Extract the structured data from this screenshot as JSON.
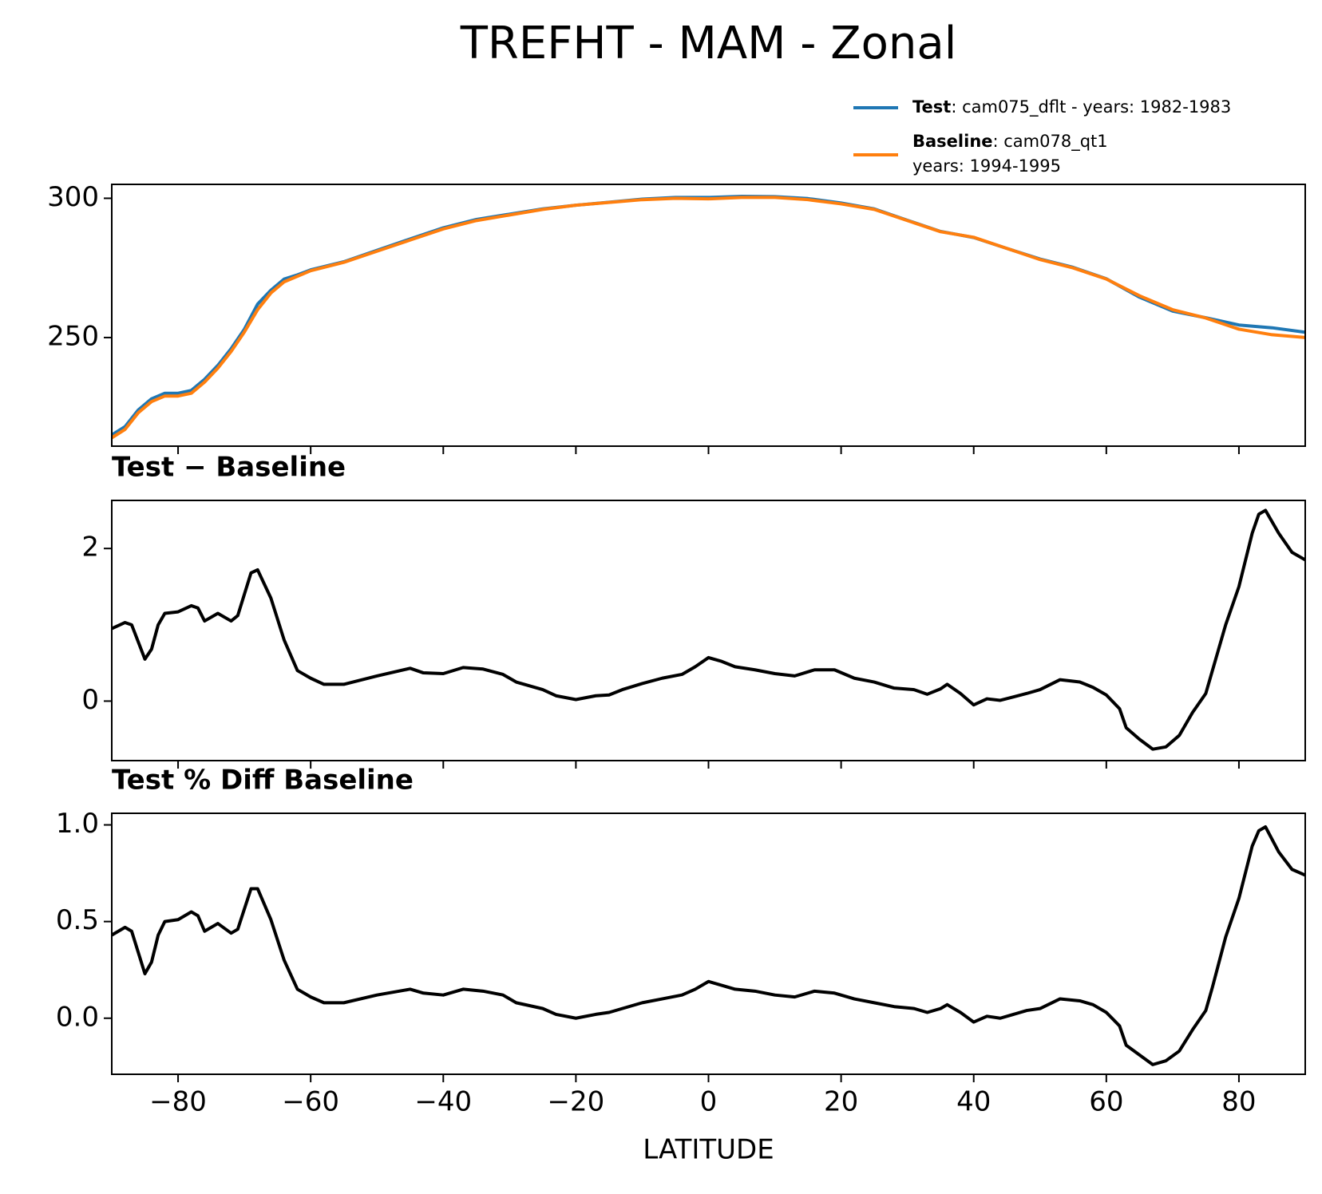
{
  "chart_data": [
    {
      "type": "line",
      "title": "TREFHT - MAM - Zonal",
      "x": [
        -90,
        -88,
        -86,
        -84,
        -82,
        -80,
        -78,
        -76,
        -74,
        -72,
        -70,
        -68,
        -66,
        -64,
        -62,
        -60,
        -55,
        -50,
        -45,
        -40,
        -35,
        -30,
        -25,
        -20,
        -15,
        -10,
        -5,
        0,
        5,
        10,
        15,
        20,
        25,
        30,
        35,
        40,
        45,
        50,
        55,
        60,
        65,
        70,
        75,
        80,
        85,
        90
      ],
      "series": [
        {
          "name": "Test",
          "detail": [
            ": cam075_dflt - years: 1982-1983"
          ],
          "color": "#1f77b4",
          "values": [
            215,
            218,
            224,
            228,
            230,
            230,
            231,
            235,
            240,
            246,
            253,
            262,
            267,
            271,
            272.5,
            274.3,
            277.2,
            281.3,
            285.4,
            289.4,
            292.4,
            294.3,
            296.2,
            297.5,
            298.6,
            299.7,
            300.3,
            300.3,
            300.7,
            300.6,
            299.9,
            298.3,
            296.2,
            292.1,
            288.1,
            285.9,
            282,
            278.2,
            275.2,
            271.1,
            264.5,
            259.5,
            257.1,
            254.5,
            253.5,
            251.9
          ]
        },
        {
          "name": "Baseline",
          "detail": [
            ": cam078_qt1",
            "years: 1994-1995"
          ],
          "color": "#ff7f0e",
          "values": [
            214,
            217,
            223,
            227,
            229,
            229,
            230,
            234,
            239,
            245,
            252,
            260,
            266,
            270,
            272,
            274,
            277,
            281,
            285,
            289,
            292,
            294,
            296,
            297.5,
            298.5,
            299.5,
            300,
            299.8,
            300.3,
            300.3,
            299.5,
            298,
            296,
            292,
            288,
            286,
            282,
            278,
            275,
            271,
            265,
            260,
            257,
            253,
            251,
            250
          ]
        }
      ],
      "xlim": [
        -90,
        90
      ],
      "xticks": [
        -80,
        -60,
        -40,
        -20,
        0,
        20,
        40,
        60,
        80
      ],
      "ylim": [
        211,
        305
      ],
      "yticks": [
        250,
        300
      ]
    },
    {
      "type": "line",
      "title": "Test − Baseline",
      "x": [
        -90,
        -88,
        -87,
        -85,
        -84,
        -83,
        -82,
        -80,
        -78,
        -77,
        -76,
        -74,
        -72,
        -71,
        -69,
        -68,
        -66,
        -64,
        -62,
        -60,
        -58,
        -55,
        -50,
        -45,
        -43,
        -40,
        -37,
        -34,
        -31,
        -29,
        -25,
        -23,
        -20,
        -17,
        -15,
        -13,
        -10,
        -7,
        -4,
        -2,
        0,
        2,
        4,
        7,
        10,
        13,
        16,
        19,
        22,
        25,
        28,
        31,
        33,
        35,
        36,
        38,
        40,
        42,
        44,
        48,
        50,
        53,
        56,
        58,
        60,
        62,
        63,
        65,
        67,
        69,
        71,
        73,
        75,
        76,
        78,
        80,
        82,
        83,
        84,
        86,
        88,
        90
      ],
      "series": [
        {
          "color": "#000000",
          "values": [
            0.95,
            1.03,
            1.0,
            0.55,
            0.68,
            1.0,
            1.15,
            1.17,
            1.25,
            1.22,
            1.05,
            1.15,
            1.05,
            1.12,
            1.68,
            1.72,
            1.35,
            0.8,
            0.4,
            0.3,
            0.22,
            0.22,
            0.33,
            0.43,
            0.37,
            0.36,
            0.44,
            0.42,
            0.35,
            0.25,
            0.15,
            0.07,
            0.02,
            0.07,
            0.08,
            0.15,
            0.23,
            0.3,
            0.35,
            0.45,
            0.57,
            0.52,
            0.45,
            0.41,
            0.36,
            0.33,
            0.41,
            0.41,
            0.3,
            0.25,
            0.17,
            0.15,
            0.09,
            0.16,
            0.22,
            0.1,
            -0.05,
            0.03,
            0.01,
            0.1,
            0.15,
            0.28,
            0.25,
            0.18,
            0.08,
            -0.1,
            -0.35,
            -0.5,
            -0.63,
            -0.6,
            -0.45,
            -0.15,
            0.1,
            0.4,
            1.0,
            1.5,
            2.2,
            2.45,
            2.5,
            2.2,
            1.95,
            1.85
          ]
        }
      ],
      "xlim": [
        -90,
        90
      ],
      "xticks": [
        -80,
        -60,
        -40,
        -20,
        0,
        20,
        40,
        60,
        80
      ],
      "ylim": [
        -0.78,
        2.63
      ],
      "yticks": [
        0,
        2
      ]
    },
    {
      "type": "line",
      "title": "Test % Diff Baseline",
      "xlabel": "LATITUDE",
      "x": [
        -90,
        -88,
        -87,
        -85,
        -84,
        -83,
        -82,
        -80,
        -78,
        -77,
        -76,
        -74,
        -72,
        -71,
        -69,
        -68,
        -66,
        -64,
        -62,
        -60,
        -58,
        -55,
        -50,
        -45,
        -43,
        -40,
        -37,
        -34,
        -31,
        -29,
        -25,
        -23,
        -20,
        -17,
        -15,
        -13,
        -10,
        -7,
        -4,
        -2,
        0,
        2,
        4,
        7,
        10,
        13,
        16,
        19,
        22,
        25,
        28,
        31,
        33,
        35,
        36,
        38,
        40,
        42,
        44,
        48,
        50,
        53,
        56,
        58,
        60,
        62,
        63,
        65,
        67,
        69,
        71,
        73,
        75,
        76,
        78,
        80,
        82,
        83,
        84,
        86,
        88,
        90
      ],
      "series": [
        {
          "color": "#000000",
          "values": [
            0.43,
            0.47,
            0.45,
            0.23,
            0.29,
            0.43,
            0.5,
            0.51,
            0.55,
            0.53,
            0.45,
            0.49,
            0.44,
            0.46,
            0.67,
            0.67,
            0.51,
            0.3,
            0.15,
            0.11,
            0.08,
            0.08,
            0.12,
            0.15,
            0.13,
            0.12,
            0.15,
            0.14,
            0.12,
            0.08,
            0.05,
            0.02,
            0.0,
            0.02,
            0.03,
            0.05,
            0.08,
            0.1,
            0.12,
            0.15,
            0.19,
            0.17,
            0.15,
            0.14,
            0.12,
            0.11,
            0.14,
            0.13,
            0.1,
            0.08,
            0.06,
            0.05,
            0.03,
            0.05,
            0.07,
            0.03,
            -0.02,
            0.01,
            0.0,
            0.04,
            0.05,
            0.1,
            0.09,
            0.07,
            0.03,
            -0.04,
            -0.14,
            -0.19,
            -0.24,
            -0.22,
            -0.17,
            -0.06,
            0.04,
            0.16,
            0.42,
            0.62,
            0.89,
            0.97,
            0.99,
            0.86,
            0.77,
            0.74
          ]
        }
      ],
      "xlim": [
        -90,
        90
      ],
      "xticks": [
        {
          "value": -80,
          "label": "−80"
        },
        {
          "value": -60,
          "label": "−60"
        },
        {
          "value": -40,
          "label": "−40"
        },
        {
          "value": -20,
          "label": "−20"
        },
        0,
        20,
        40,
        60,
        80
      ],
      "ylim": [
        -0.29,
        1.06
      ],
      "yticks": [
        {
          "value": 0,
          "label": "0.0"
        },
        {
          "value": 0.5,
          "label": "0.5"
        },
        {
          "value": 1,
          "label": "1.0"
        }
      ]
    }
  ]
}
